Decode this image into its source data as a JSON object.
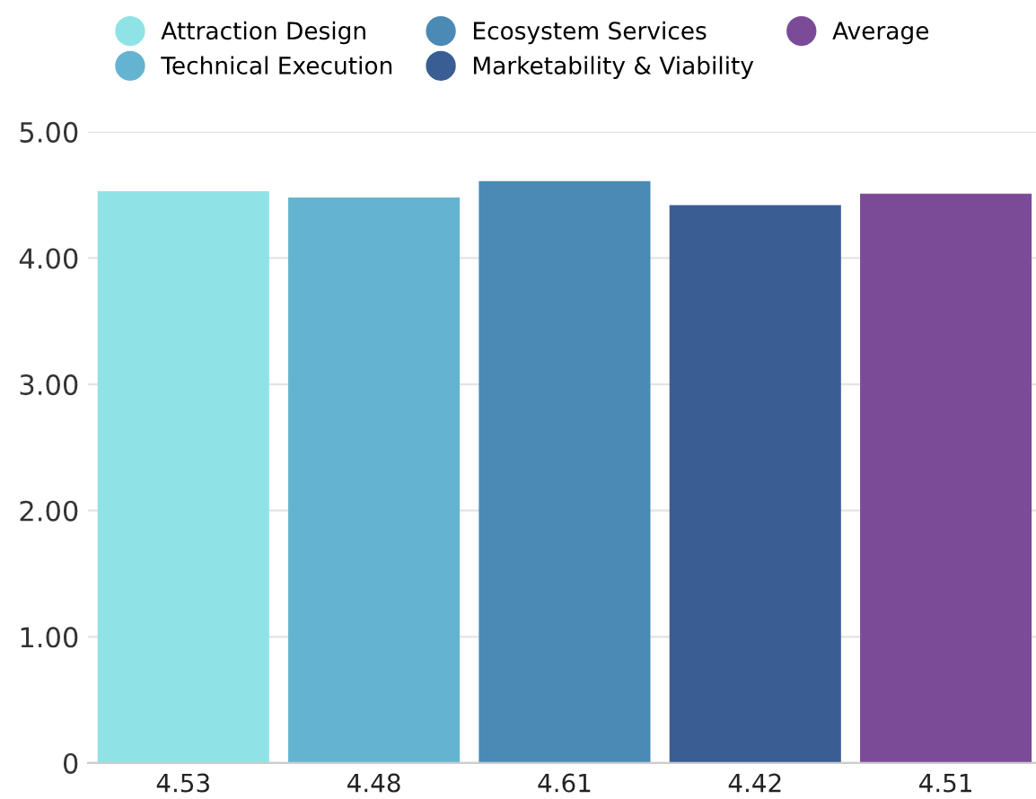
{
  "chart_data": {
    "type": "bar",
    "categories": [
      null,
      null,
      null,
      null,
      null
    ],
    "series": [
      {
        "name": "Attraction Design",
        "color": "#8fe3e6",
        "values": [
          4.53,
          null,
          null,
          null,
          null
        ]
      },
      {
        "name": "Technical Execution",
        "color": "#64b4d1",
        "values": [
          null,
          4.48,
          null,
          null,
          null
        ]
      },
      {
        "name": "Ecosystem Services",
        "color": "#4a8ab5",
        "values": [
          null,
          null,
          4.61,
          null,
          null
        ]
      },
      {
        "name": "Marketability & Viability",
        "color": "#3a5e94",
        "values": [
          null,
          null,
          null,
          4.42,
          null
        ]
      },
      {
        "name": "Average",
        "color": "#7c4b98",
        "values": [
          null,
          null,
          null,
          null,
          4.51
        ]
      }
    ],
    "ylim": [
      0,
      5
    ],
    "yticks": [
      0,
      {
        "value": 1,
        "label": "1.00"
      },
      {
        "value": 2,
        "label": "2.00"
      },
      {
        "value": 3,
        "label": "3.00"
      },
      {
        "value": 4,
        "label": "4.00"
      },
      {
        "value": 5,
        "label": "5.00"
      }
    ],
    "grid": "y",
    "legend": "top",
    "data_labels": true
  }
}
